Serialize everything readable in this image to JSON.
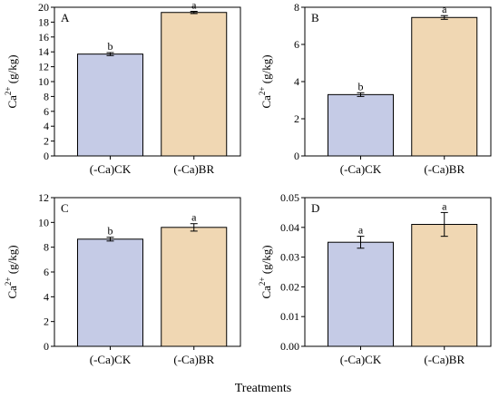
{
  "figure": {
    "xlabel": "Treatments"
  },
  "colors": {
    "ck_fill": "#c5cbe6",
    "br_fill": "#f0d7b3",
    "axis": "#000000"
  },
  "chart_data": [
    {
      "type": "bar",
      "panel_label": "A",
      "ylabel_base": "Ca",
      "ylabel_sup": "2+",
      "ylabel_unit": " (g/kg)",
      "categories": [
        "(-Ca)CK",
        "(-Ca)BR"
      ],
      "values": [
        13.7,
        19.3
      ],
      "errors": [
        0.2,
        0.15
      ],
      "significance": [
        "b",
        "a"
      ],
      "ylim": [
        0,
        20
      ],
      "yticks": [
        "0",
        "2",
        "4",
        "6",
        "8",
        "10",
        "12",
        "14",
        "16",
        "18",
        "20"
      ]
    },
    {
      "type": "bar",
      "panel_label": "B",
      "ylabel_base": "Ca",
      "ylabel_sup": "2+",
      "ylabel_unit": " (g/kg)",
      "categories": [
        "(-Ca)CK",
        "(-Ca)BR"
      ],
      "values": [
        3.3,
        7.45
      ],
      "errors": [
        0.1,
        0.1
      ],
      "significance": [
        "b",
        "a"
      ],
      "ylim": [
        0,
        8
      ],
      "yticks": [
        "0",
        "2",
        "4",
        "6",
        "8"
      ]
    },
    {
      "type": "bar",
      "panel_label": "C",
      "ylabel_base": "Ca",
      "ylabel_sup": "2+",
      "ylabel_unit": " (g/kg)",
      "categories": [
        "(-Ca)CK",
        "(-Ca)BR"
      ],
      "values": [
        8.65,
        9.6
      ],
      "errors": [
        0.15,
        0.3
      ],
      "significance": [
        "b",
        "a"
      ],
      "ylim": [
        0,
        12
      ],
      "yticks": [
        "0",
        "2",
        "4",
        "6",
        "8",
        "10",
        "12"
      ]
    },
    {
      "type": "bar",
      "panel_label": "D",
      "ylabel_base": "Ca",
      "ylabel_sup": "2+",
      "ylabel_unit": " (g/kg)",
      "categories": [
        "(-Ca)CK",
        "(-Ca)BR"
      ],
      "values": [
        0.035,
        0.041
      ],
      "errors": [
        0.002,
        0.004
      ],
      "significance": [
        "a",
        "a"
      ],
      "ylim": [
        0,
        0.05
      ],
      "yticks": [
        "0.00",
        "0.01",
        "0.02",
        "0.03",
        "0.04",
        "0.05"
      ]
    }
  ]
}
